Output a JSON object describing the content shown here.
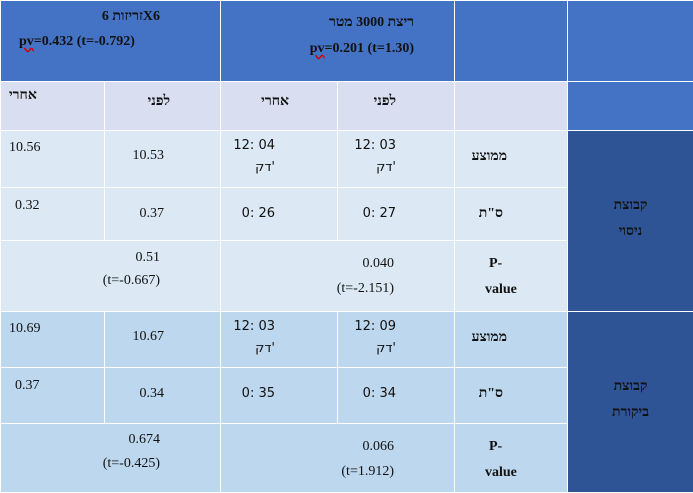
{
  "header": {
    "run_title": "ריצת 3000 מטר",
    "run_pv_label": "pv",
    "run_pv_rest": "=0.201 (t=1.30)",
    "sprint_title": "זריזות 6X6",
    "sprint_pv_label": "pv",
    "sprint_pv_rest": "=0.432 (t=-0.792)"
  },
  "subheader": {
    "run_before": "לפני",
    "run_after": "אחרי",
    "sprint_before": "לפני",
    "sprint_after": "אחרי"
  },
  "groups": [
    {
      "name_line1": "קבוצת",
      "name_line2": "ניסוי",
      "rows": [
        {
          "label": "ממוצע",
          "run_before_l1": "12: 03",
          "run_before_l2": "דק'",
          "run_after_l1": "12: 04",
          "run_after_l2": "דק'",
          "sprint_before": "10.53",
          "sprint_after": "10.56"
        },
        {
          "label": "ס\"ת",
          "run_before": "0: 27",
          "run_after": "0: 26",
          "sprint_before": "0.37",
          "sprint_after": "0.32"
        },
        {
          "label_l1": "P-",
          "label_l2": "value",
          "run_l1": "0.040",
          "run_l2": "(t=-2.151)",
          "sprint_l1": "0.51",
          "sprint_l2": "(t=-0.667)"
        }
      ]
    },
    {
      "name_line1": "קבוצת",
      "name_line2": "ביקורת",
      "rows": [
        {
          "label": "ממוצע",
          "run_before_l1": "12: 09",
          "run_before_l2": "דק'",
          "run_after_l1": "12: 03",
          "run_after_l2": "דק'",
          "sprint_before": "10.67",
          "sprint_after": "10.69"
        },
        {
          "label": "ס\"ת",
          "run_before": "0: 34",
          "run_after": "0: 35",
          "sprint_before": "0.34",
          "sprint_after": "0.37"
        },
        {
          "label_l1": "P-",
          "label_l2": "value",
          "run_l1": "0.066",
          "run_l2": "(t=1.912)",
          "sprint_l1": "0.674",
          "sprint_l2": "(t=-0.425)"
        }
      ]
    }
  ]
}
